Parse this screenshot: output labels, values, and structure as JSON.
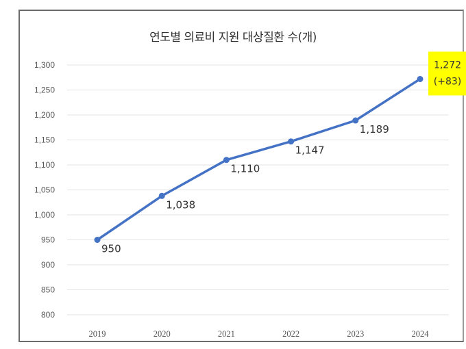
{
  "chart_data": {
    "type": "line",
    "title": "연도별 의료비 지원 대상질환 수(개)",
    "xlabel": "",
    "ylabel": "",
    "categories": [
      "2019",
      "2020",
      "2021",
      "2022",
      "2023",
      "2024"
    ],
    "series": [
      {
        "values": [
          950,
          1038,
          1110,
          1147,
          1189,
          1272
        ],
        "data_labels": [
          "950",
          "1,038",
          "1,110",
          "1,147",
          "1,189",
          "1,272"
        ],
        "color": "#4472C4"
      }
    ],
    "ylim": [
      800,
      1300
    ],
    "yticks": [
      800,
      850,
      900,
      950,
      1000,
      1050,
      1100,
      1150,
      1200,
      1250,
      1300
    ],
    "ytick_labels": [
      "800",
      "850",
      "900",
      "950",
      "1,000",
      "1,050",
      "1,100",
      "1,150",
      "1,200",
      "1,250",
      "1,300"
    ],
    "grid": true,
    "highlight": {
      "value_label": "1,272",
      "change_label": "(+83)",
      "color": "#FFFF00"
    }
  }
}
